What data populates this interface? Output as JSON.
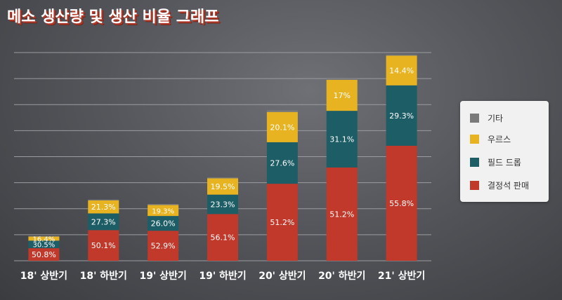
{
  "title": "메소 생산량 및 생산 비율 그래프",
  "colors": {
    "sales": "#c0392b",
    "drum": "#1d5d66",
    "urs": "#e8b321",
    "other": "#7a7a7a",
    "grid": "#9b9ca0"
  },
  "legend": [
    {
      "key": "other",
      "label": "기타"
    },
    {
      "key": "urs",
      "label": "우르스"
    },
    {
      "key": "drum",
      "label": "필드 드롭"
    },
    {
      "key": "sales",
      "label": "결정석 판매"
    }
  ],
  "chart_data": {
    "type": "bar",
    "stacked": true,
    "categories": [
      "18' 상반기",
      "18' 하반기",
      "19' 상반기",
      "19' 하반기",
      "20' 상반기",
      "20' 하반기",
      "21' 상반기"
    ],
    "totals": [
      0.95,
      2.35,
      2.18,
      3.2,
      5.78,
      7.0,
      7.92
    ],
    "series": [
      {
        "name": "결정석 판매",
        "key": "sales",
        "labels": [
          "50.8%",
          "50.1%",
          "52.9%",
          "56.1%",
          "51.2%",
          "51.2%",
          "55.8%"
        ],
        "shares": [
          0.508,
          0.501,
          0.529,
          0.561,
          0.512,
          0.512,
          0.558
        ]
      },
      {
        "name": "필드 드롭",
        "key": "drum",
        "labels": [
          "30.5%",
          "27.3%",
          "26.0%",
          "23.3%",
          "27.6%",
          "31.1%",
          "29.3%"
        ],
        "shares": [
          0.305,
          0.273,
          0.26,
          0.233,
          0.276,
          0.311,
          0.293
        ]
      },
      {
        "name": "우르스",
        "key": "urs",
        "labels": [
          "16.4%",
          "21.3%",
          "19.3%",
          "19.5%",
          "20.1%",
          "17%",
          "14.4%"
        ],
        "shares": [
          0.164,
          0.213,
          0.193,
          0.195,
          0.201,
          0.17,
          0.144
        ]
      },
      {
        "name": "기타",
        "key": "other",
        "labels": [
          "",
          "",
          "",
          "",
          "",
          "",
          ""
        ],
        "shares": [
          0.023,
          0.013,
          0.018,
          0.011,
          0.011,
          0.007,
          0.005
        ]
      }
    ],
    "ylim": [
      0,
      8
    ],
    "grid": true,
    "legend_position": "right"
  }
}
